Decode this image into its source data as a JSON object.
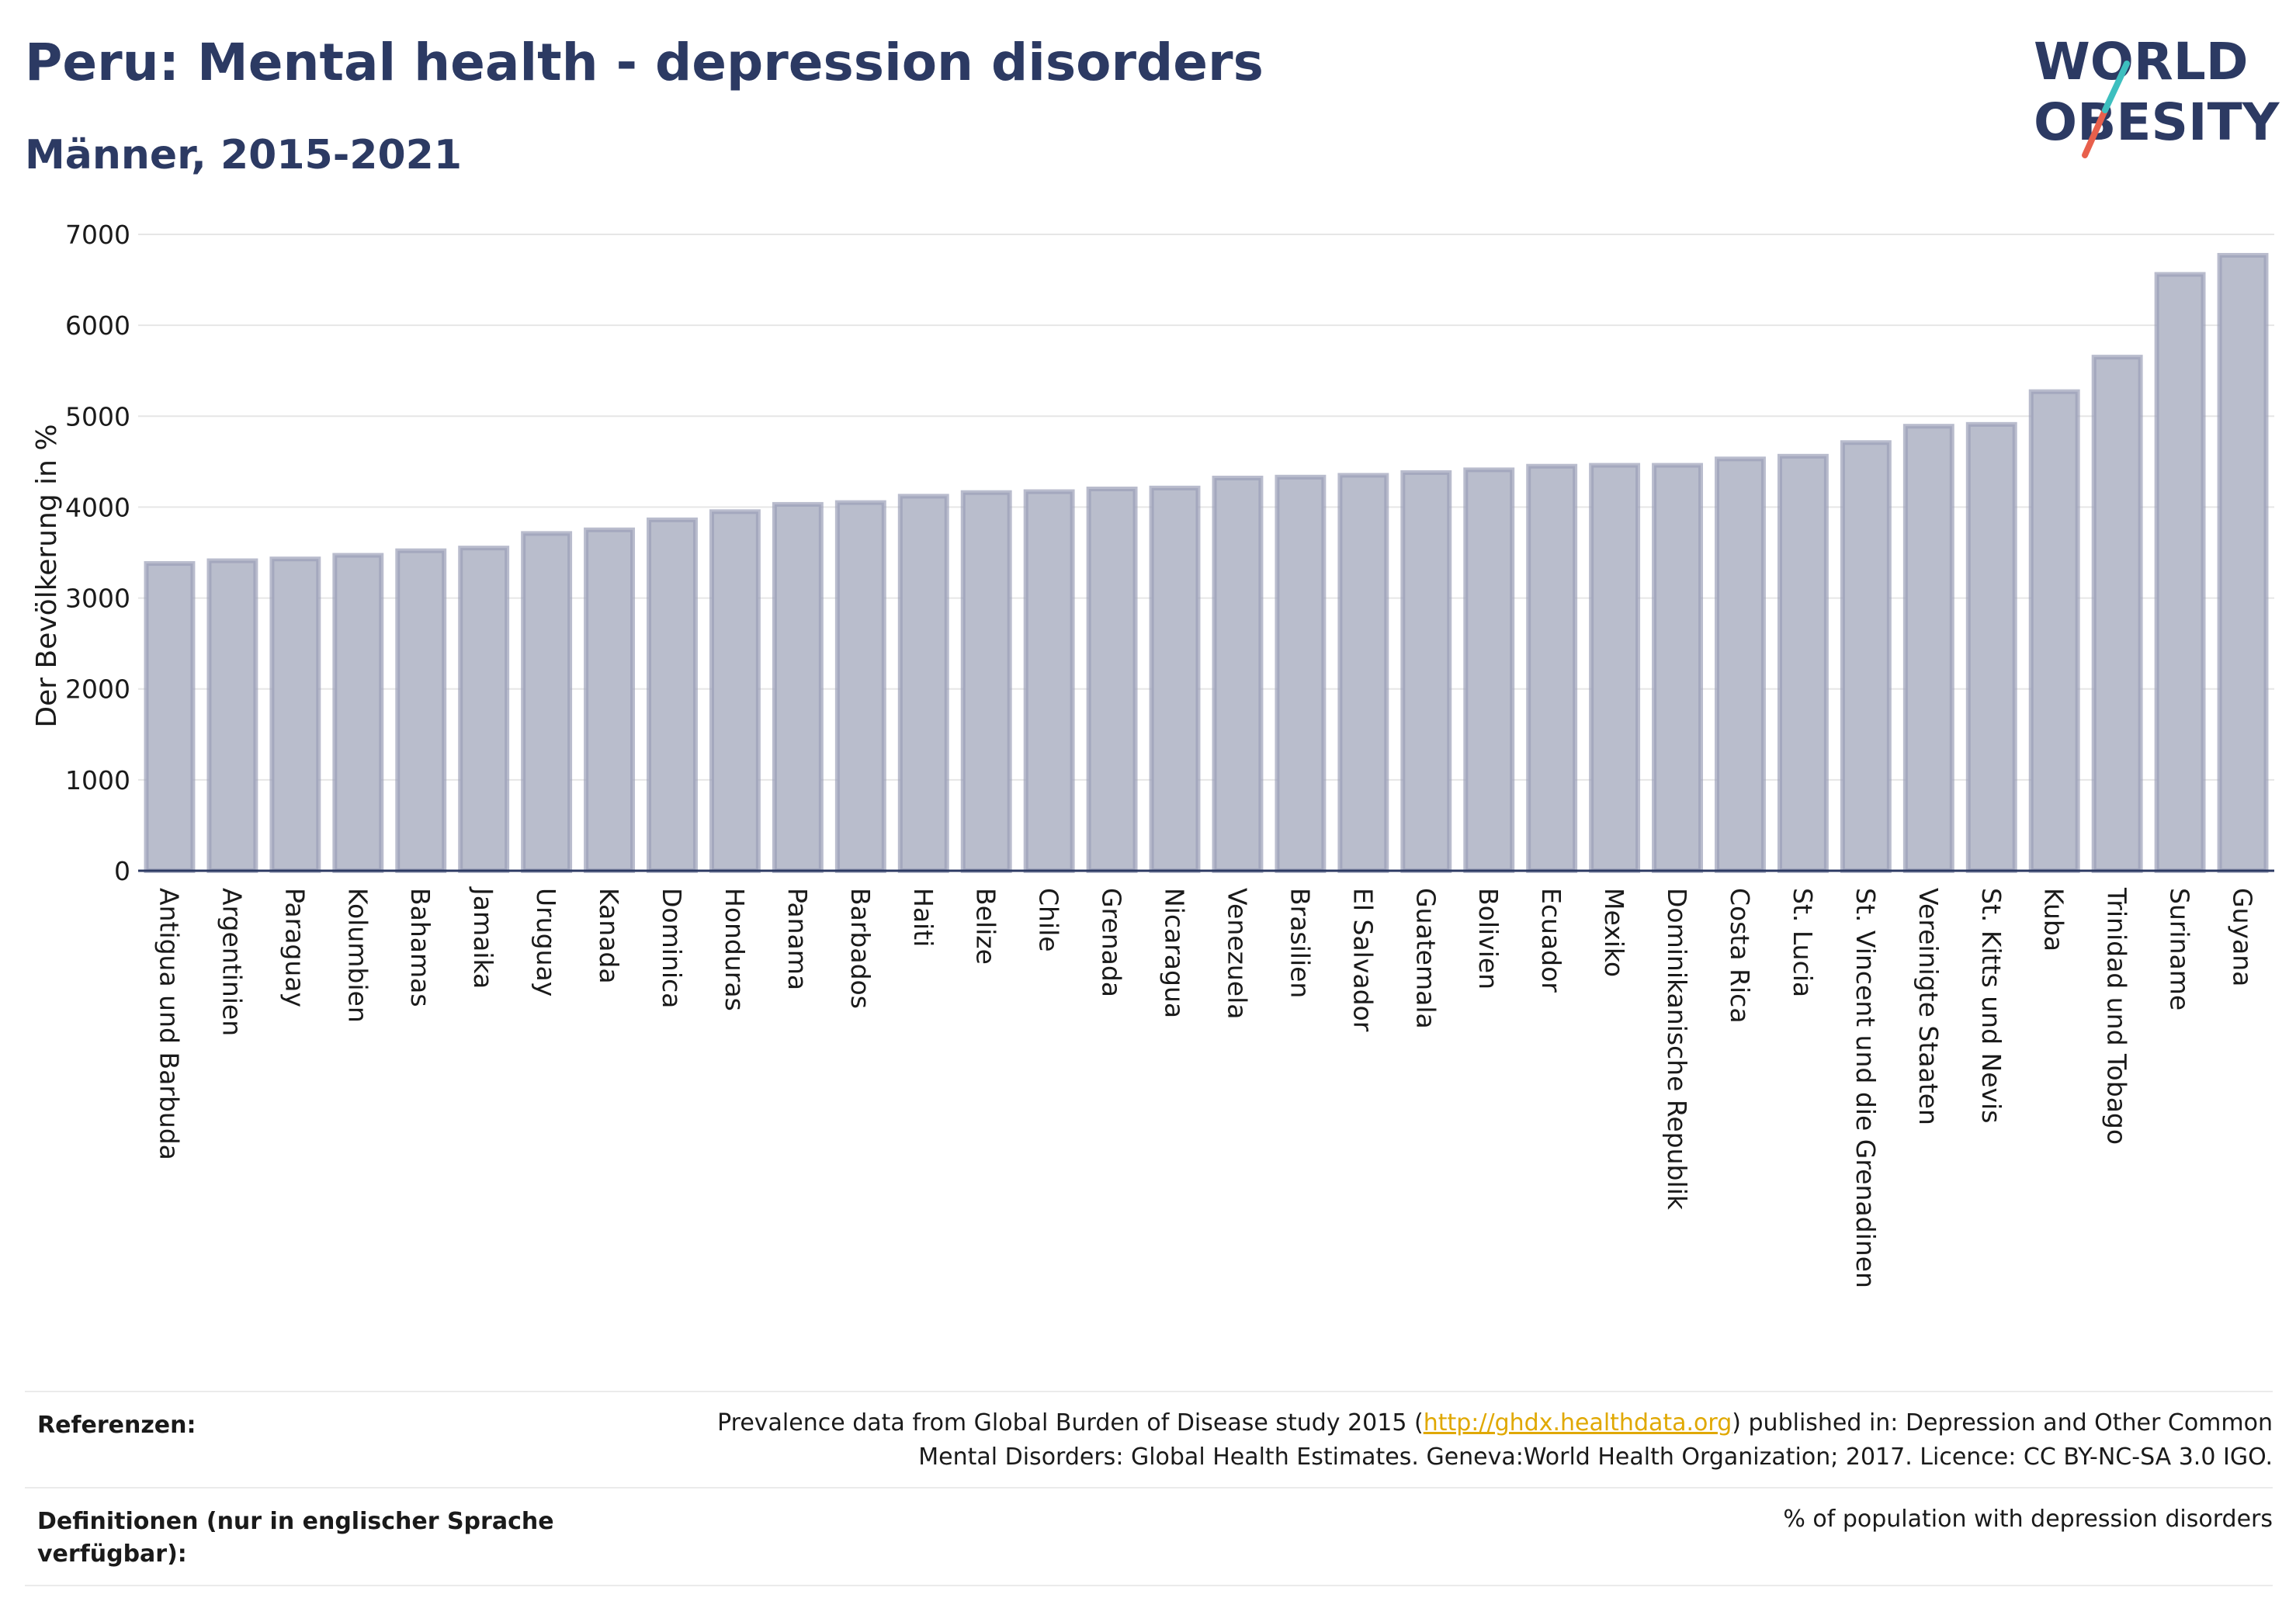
{
  "header": {
    "title": "Peru: Mental health - depression disorders",
    "subtitle": "Männer, 2015-2021"
  },
  "logo": {
    "line1": "WORLD",
    "line2": "OBESITY",
    "colors": {
      "text": "#2c3a63",
      "slash_top": "#3dbfbf",
      "slash_bottom": "#e8604c"
    }
  },
  "chart_data": {
    "type": "bar",
    "title": "Peru: Mental health - depression disorders",
    "subtitle": "Männer, 2015-2021",
    "ylabel": "Der Bevölkerung in %",
    "xlabel": "",
    "ylim": [
      0,
      7000
    ],
    "yticks": [
      0,
      1000,
      2000,
      3000,
      4000,
      5000,
      6000,
      7000
    ],
    "grid": true,
    "bar_color": "#b9bdcc",
    "bar_edge_color": "#9ba0b8",
    "categories": [
      "Antigua und Barbuda",
      "Argentinien",
      "Paraguay",
      "Kolumbien",
      "Bahamas",
      "Jamaika",
      "Uruguay",
      "Kanada",
      "Dominica",
      "Honduras",
      "Panama",
      "Barbados",
      "Haiti",
      "Belize",
      "Chile",
      "Grenada",
      "Nicaragua",
      "Venezuela",
      "Brasilien",
      "El Salvador",
      "Guatemala",
      "Bolivien",
      "Ecuador",
      "Mexiko",
      "Dominikanische Republik",
      "Costa Rica",
      "St. Lucia",
      "St. Vincent und die Grenadinen",
      "Vereinigte Staaten",
      "St. Kitts und Nevis",
      "Kuba",
      "Trinidad und Tobago",
      "Suriname",
      "Guyana"
    ],
    "values": [
      3380,
      3410,
      3430,
      3470,
      3520,
      3550,
      3710,
      3750,
      3860,
      3950,
      4030,
      4050,
      4120,
      4160,
      4170,
      4200,
      4210,
      4320,
      4330,
      4350,
      4380,
      4410,
      4450,
      4460,
      4460,
      4530,
      4560,
      4710,
      4890,
      4910,
      5270,
      5650,
      6560,
      6770
    ]
  },
  "footer": {
    "references_label": "Referenzen:",
    "references_pre": "Prevalence data from Global Burden of Disease study 2015 (",
    "references_link": "http://ghdx.healthdata.org",
    "references_post": ") published in: Depression and Other Common",
    "references_line2": "Mental Disorders: Global Health Estimates. Geneva:World Health Organization; 2017. Licence: CC BY-NC-SA 3.0 IGO.",
    "definitions_label": "Definitionen (nur in englischer Sprache verfügbar):",
    "definitions_value": "% of population with depression disorders"
  }
}
